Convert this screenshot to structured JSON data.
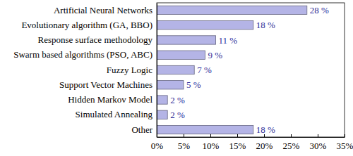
{
  "chart_data": {
    "type": "bar",
    "orientation": "horizontal",
    "categories": [
      "Artificial Neural Networks",
      "Evolutionary algorithm (GA, BBO)",
      "Response surface methodology",
      "Swarm based algorithms (PSO, ABC)",
      "Fuzzy Logic",
      "Support Vector Machines",
      "Hidden Markov Model",
      "Simulated Annealing",
      "Other"
    ],
    "values": [
      28,
      18,
      11,
      9,
      7,
      5,
      2,
      2,
      18
    ],
    "value_labels": [
      "28 %",
      "18 %",
      "11 %",
      "9 %",
      "7 %",
      "5 %",
      "2 %",
      "2 %",
      "18 %"
    ],
    "data_labels": true,
    "color": "#b4b4e6",
    "xlim": [
      0,
      35
    ],
    "xticks": [
      {
        "value": 0,
        "label": "0%"
      },
      {
        "value": 5,
        "label": "5%"
      },
      {
        "value": 10,
        "label": "10%"
      },
      {
        "value": 15,
        "label": "15%"
      },
      {
        "value": 20,
        "label": "20%"
      },
      {
        "value": 25,
        "label": "25%"
      },
      {
        "value": 30,
        "label": "30%"
      },
      {
        "value": 35,
        "label": "35%"
      }
    ],
    "grid": false
  }
}
